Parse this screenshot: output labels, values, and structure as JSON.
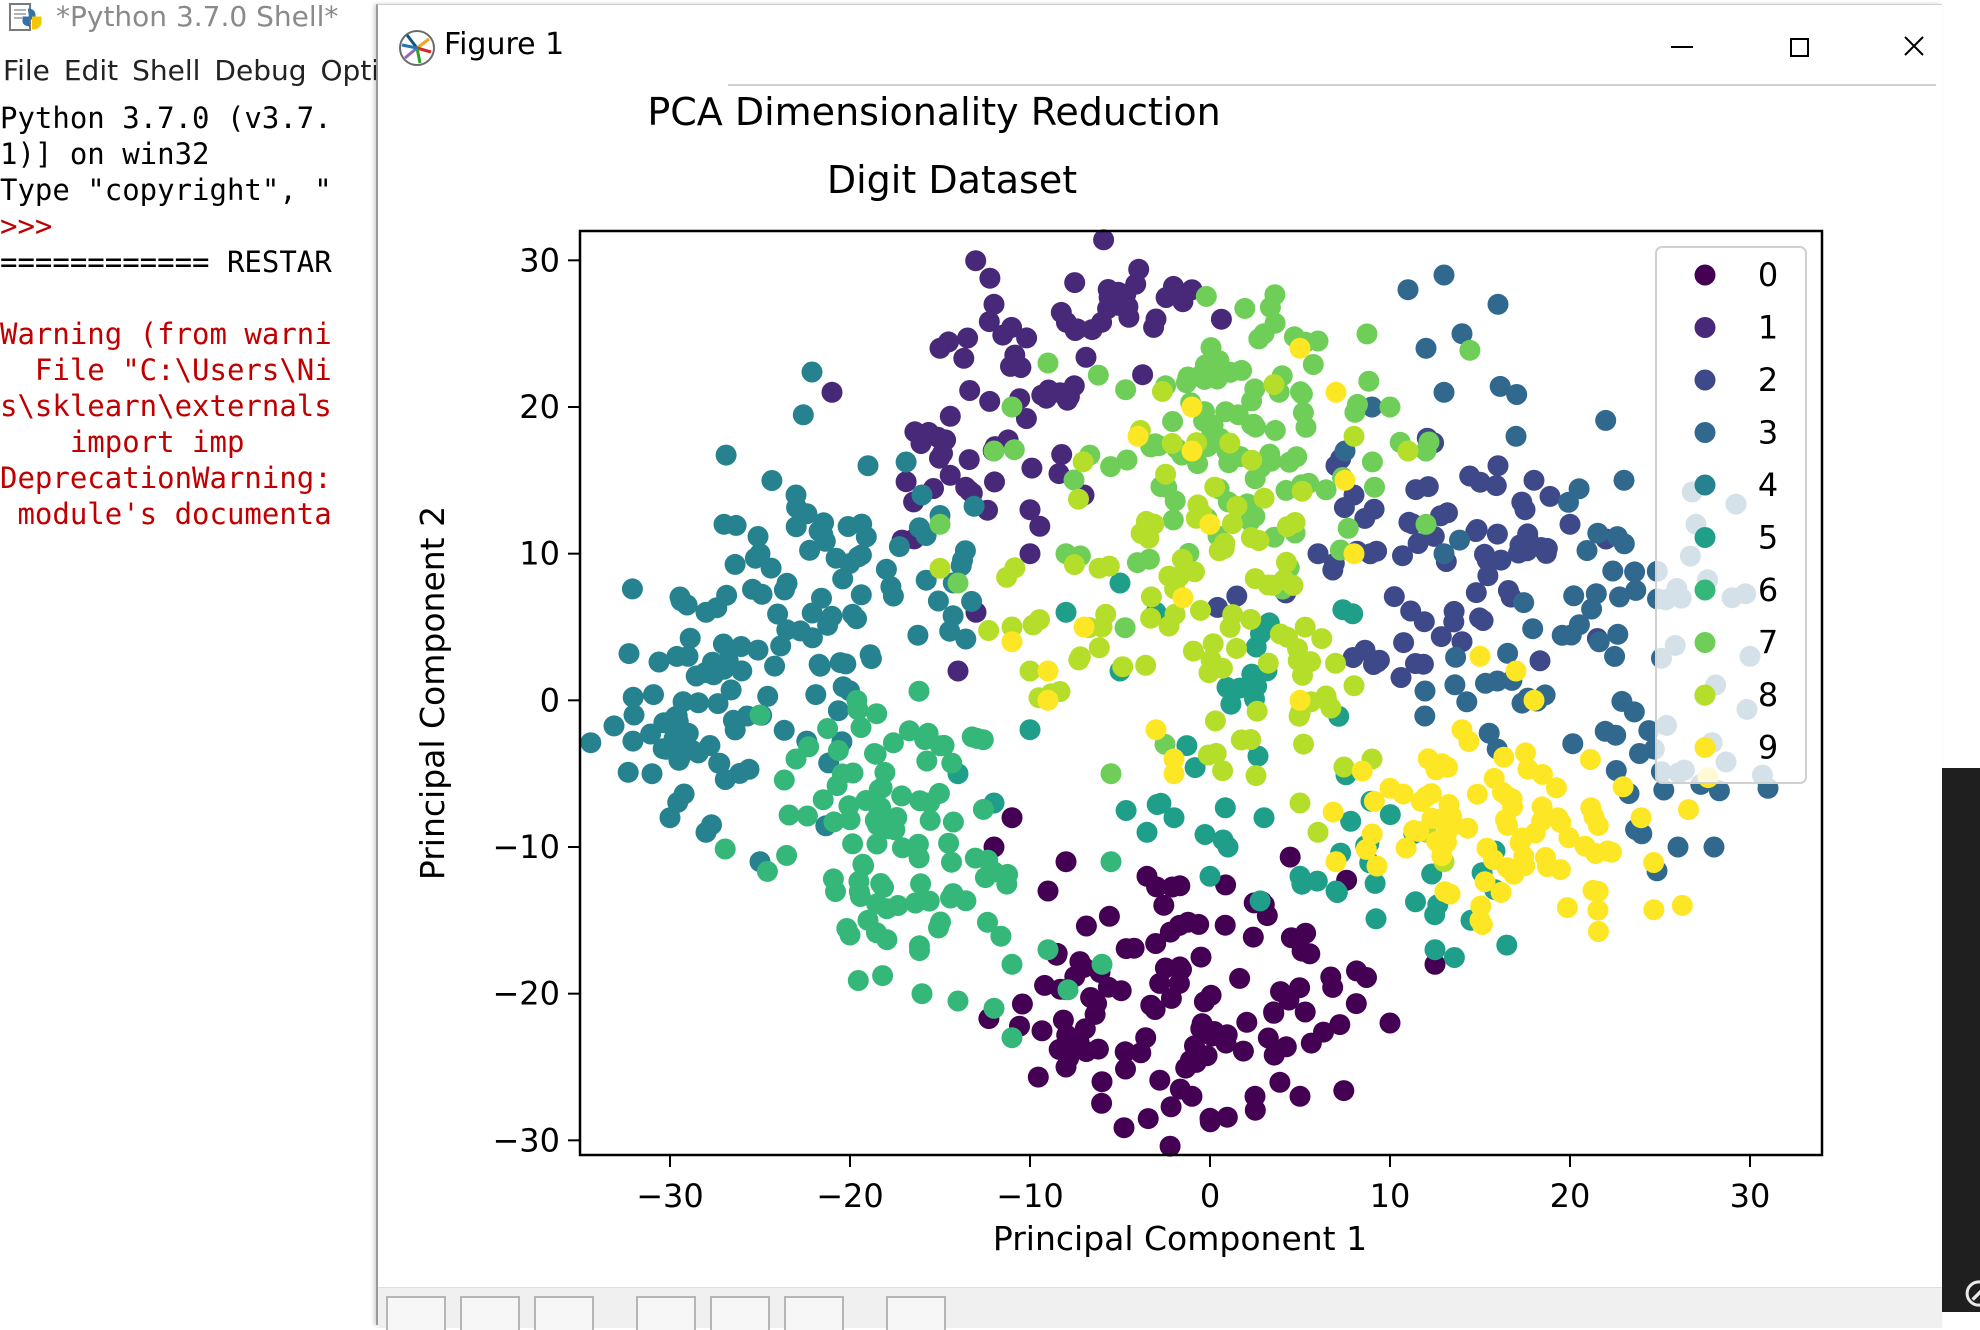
{
  "shell": {
    "title": "*Python 3.7.0 Shell*",
    "menu": [
      "File",
      "Edit",
      "Shell",
      "Debug",
      "Optio"
    ],
    "lines": [
      {
        "text": "Python 3.7.0 (v3.7.",
        "red": false
      },
      {
        "text": "1)] on win32",
        "red": false
      },
      {
        "text": "Type \"copyright\", \"",
        "red": false
      },
      {
        "text": ">>>",
        "red": true
      },
      {
        "text": "============ RESTAR",
        "red": false
      },
      {
        "text": "",
        "red": false
      },
      {
        "text": "Warning (from warni",
        "red": true
      },
      {
        "text": "  File \"C:\\Users\\Ni",
        "red": true
      },
      {
        "text": "s\\sklearn\\externals",
        "red": true
      },
      {
        "text": "    import imp",
        "red": true
      },
      {
        "text": "DeprecationWarning:",
        "red": true
      },
      {
        "text": " module's documenta",
        "red": true
      }
    ]
  },
  "figure": {
    "title": "Figure 1",
    "colors": [
      "#440154",
      "#482878",
      "#3e4989",
      "#31688e",
      "#26828e",
      "#1f9e89",
      "#35b779",
      "#6ece58",
      "#b5de2b",
      "#fde725"
    ]
  },
  "chart_data": {
    "type": "scatter",
    "title": "PCA Dimensionality Reduction",
    "subtitle": "Digit Dataset",
    "xlabel": "Principal Component 1",
    "ylabel": "Principal Component 2",
    "xlim": [
      -35,
      34
    ],
    "ylim": [
      -31,
      32
    ],
    "xticks": [
      -30,
      -20,
      -10,
      0,
      10,
      20,
      30
    ],
    "yticks": [
      -30,
      -20,
      -10,
      0,
      10,
      20,
      30
    ],
    "xtick_labels": [
      "−30",
      "−20",
      "−10",
      "0",
      "10",
      "20",
      "30"
    ],
    "ytick_labels": [
      "−30",
      "−20",
      "−10",
      "0",
      "10",
      "20",
      "30"
    ],
    "grid": false,
    "legend_position": "upper-right",
    "legend": [
      "0",
      "1",
      "2",
      "3",
      "4",
      "5",
      "6",
      "7",
      "8",
      "9"
    ],
    "series": [
      {
        "name": "0",
        "clusters": [
          [
            -1,
            -21,
            4.5,
            4.0,
            70
          ],
          [
            -6,
            -20,
            2.5,
            2.5,
            14
          ],
          [
            5,
            -20,
            2.5,
            3.0,
            14
          ],
          [
            0,
            -13,
            2.0,
            2.0,
            8
          ],
          [
            -7,
            -18,
            3,
            2,
            8
          ]
        ],
        "points": [
          [
            0,
            -28.5
          ],
          [
            -1,
            -27
          ],
          [
            2.5,
            -27
          ],
          [
            5,
            -27
          ],
          [
            -11,
            -8
          ],
          [
            -9,
            -13
          ],
          [
            -3.5,
            -12
          ],
          [
            10,
            -22
          ],
          [
            12.5,
            -18
          ],
          [
            -6,
            -26
          ],
          [
            -8,
            -25
          ],
          [
            -12,
            -10
          ],
          [
            -8,
            -11
          ]
        ]
      },
      {
        "name": "1",
        "clusters": [
          [
            -11,
            20,
            2.5,
            4.5,
            36
          ],
          [
            -5,
            27,
            2.5,
            1.5,
            18
          ],
          [
            -15,
            16,
            2.0,
            2.5,
            12
          ],
          [
            -8,
            23,
            3.0,
            2.0,
            10
          ]
        ],
        "points": [
          [
            -13,
            6
          ],
          [
            -14,
            2
          ],
          [
            -10,
            10
          ],
          [
            -21,
            21
          ],
          [
            -15,
            24
          ],
          [
            -12,
            27
          ],
          [
            -3,
            26
          ],
          [
            -1,
            28
          ],
          [
            -7,
            14
          ],
          [
            -10,
            13
          ]
        ]
      },
      {
        "name": "2",
        "clusters": [
          [
            11,
            10,
            3.5,
            3.5,
            42
          ],
          [
            17,
            9,
            2.0,
            3.0,
            16
          ],
          [
            10,
            3,
            2.0,
            2.0,
            8
          ]
        ],
        "points": [
          [
            17.5,
            13
          ],
          [
            18,
            15
          ],
          [
            20,
            12
          ],
          [
            16,
            16
          ],
          [
            7,
            16
          ],
          [
            8,
            14
          ],
          [
            14,
            4
          ],
          [
            22,
            11
          ],
          [
            6,
            10
          ]
        ]
      },
      {
        "name": "3",
        "clusters": [
          [
            22,
            5,
            4.0,
            6.0,
            56
          ],
          [
            26,
            -3,
            2.5,
            3.0,
            14
          ],
          [
            16,
            0,
            2.0,
            2.0,
            8
          ]
        ],
        "points": [
          [
            13,
            29
          ],
          [
            11,
            28
          ],
          [
            16,
            27
          ],
          [
            14,
            25
          ],
          [
            12,
            24
          ],
          [
            13,
            21
          ],
          [
            17,
            18
          ],
          [
            27,
            12
          ],
          [
            29,
            7
          ],
          [
            30,
            3
          ],
          [
            31,
            -6
          ],
          [
            28,
            -10
          ],
          [
            26,
            -10
          ],
          [
            23,
            15
          ],
          [
            13,
            10
          ],
          [
            7.5,
            17
          ],
          [
            9,
            20
          ]
        ]
      },
      {
        "name": "4",
        "clusters": [
          [
            -28,
            0,
            2.5,
            5.0,
            55
          ],
          [
            -22,
            5,
            3.0,
            6.0,
            50
          ],
          [
            -16,
            8,
            2.5,
            3.0,
            18
          ],
          [
            -21,
            12,
            3.0,
            2.0,
            12
          ]
        ],
        "points": [
          [
            -32,
            -1
          ],
          [
            -30,
            -8
          ],
          [
            -28,
            -9
          ],
          [
            -25,
            -11
          ],
          [
            -27,
            12
          ],
          [
            -23,
            14
          ],
          [
            -16,
            14
          ],
          [
            -19,
            16
          ],
          [
            -28,
            6
          ],
          [
            -25,
            10
          ],
          [
            -31,
            -5
          ],
          [
            -29,
            3
          ]
        ]
      },
      {
        "name": "5",
        "clusters": [
          [
            9,
            -11,
            2.5,
            2.5,
            16
          ],
          [
            0,
            -5,
            3.0,
            3.0,
            10
          ],
          [
            4,
            2,
            2.5,
            3.0,
            12
          ],
          [
            14,
            -14,
            2.0,
            2.0,
            8
          ]
        ],
        "points": [
          [
            -14,
            -5
          ],
          [
            -12,
            -7
          ],
          [
            -3.5,
            -9
          ],
          [
            -2,
            -8
          ],
          [
            0,
            -12
          ],
          [
            3,
            -8
          ],
          [
            -5,
            2
          ],
          [
            -8,
            6
          ],
          [
            -10,
            -2
          ],
          [
            1,
            -10
          ],
          [
            12.5,
            -17
          ],
          [
            14.5,
            -15
          ],
          [
            -5,
            8
          ],
          [
            -3,
            6
          ],
          [
            5,
            -12
          ],
          [
            7,
            -13
          ]
        ]
      },
      {
        "name": "6",
        "clusters": [
          [
            -18,
            -11,
            3.0,
            4.0,
            60
          ],
          [
            -19,
            -4,
            2.0,
            2.0,
            14
          ],
          [
            -15,
            -3,
            2.0,
            2.0,
            10
          ],
          [
            -13,
            -14,
            2.0,
            3.0,
            12
          ]
        ],
        "points": [
          [
            -11,
            -23
          ],
          [
            -16,
            -20
          ],
          [
            -14,
            -20.5
          ],
          [
            -19,
            -15
          ],
          [
            -20,
            -16
          ],
          [
            -25,
            -1
          ],
          [
            -23,
            -4
          ],
          [
            -11,
            -18
          ],
          [
            -12,
            -21
          ],
          [
            -6,
            -18
          ],
          [
            -5.5,
            -11
          ],
          [
            -9,
            -17
          ]
        ]
      },
      {
        "name": "7",
        "clusters": [
          [
            3,
            20,
            4.0,
            4.0,
            60
          ],
          [
            -3,
            16,
            3.0,
            4.0,
            30
          ],
          [
            5,
            12,
            3.0,
            3.0,
            14
          ]
        ],
        "points": [
          [
            -9,
            23
          ],
          [
            -11,
            20
          ],
          [
            -15,
            12
          ],
          [
            -14,
            8
          ],
          [
            -12,
            17
          ],
          [
            -8,
            10
          ],
          [
            10,
            20
          ],
          [
            12,
            17
          ],
          [
            -5.5,
            -5
          ],
          [
            -2.5,
            -3
          ],
          [
            12,
            12
          ],
          [
            3,
            25
          ],
          [
            6,
            24.5
          ]
        ]
      },
      {
        "name": "8",
        "clusters": [
          [
            -1,
            12,
            3.5,
            4.0,
            44
          ],
          [
            4,
            3,
            3.0,
            3.0,
            26
          ],
          [
            -8,
            6,
            2.5,
            3.5,
            18
          ],
          [
            2,
            -4,
            2.5,
            2.5,
            10
          ]
        ],
        "points": [
          [
            -15,
            9
          ],
          [
            -11,
            5
          ],
          [
            -10,
            2
          ],
          [
            -6,
            5
          ],
          [
            5,
            -7
          ],
          [
            6,
            -9
          ],
          [
            8,
            1
          ],
          [
            9,
            -4
          ],
          [
            8,
            18
          ],
          [
            11,
            17
          ],
          [
            12,
            -9
          ],
          [
            13,
            -11
          ]
        ]
      },
      {
        "name": "9",
        "clusters": [
          [
            19,
            -10,
            3.5,
            2.5,
            52
          ],
          [
            12,
            -9,
            2.5,
            2.5,
            24
          ],
          [
            16,
            -5,
            2.0,
            2.0,
            8
          ]
        ],
        "points": [
          [
            -9,
            0
          ],
          [
            -11,
            4
          ],
          [
            -7,
            5
          ],
          [
            -9,
            2
          ],
          [
            -3,
            -2
          ],
          [
            -2,
            -4
          ],
          [
            -2,
            -5
          ],
          [
            5,
            0
          ],
          [
            8,
            10
          ],
          [
            7.5,
            15
          ],
          [
            7,
            21
          ],
          [
            5,
            24
          ],
          [
            -1,
            20
          ],
          [
            -1,
            17
          ],
          [
            -4,
            18
          ],
          [
            0,
            12
          ],
          [
            -1.5,
            7
          ],
          [
            15,
            3
          ],
          [
            17,
            2
          ],
          [
            18,
            0
          ],
          [
            14,
            -2
          ],
          [
            15,
            -15
          ],
          [
            10,
            -6
          ],
          [
            7,
            -11
          ]
        ]
      }
    ]
  }
}
